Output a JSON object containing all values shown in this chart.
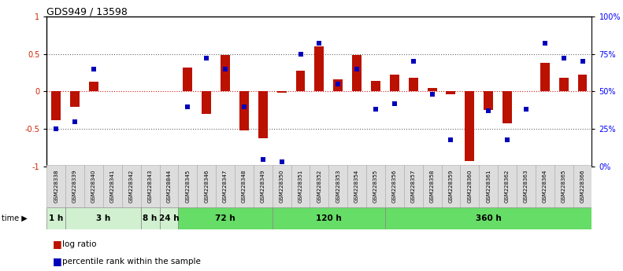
{
  "title": "GDS949 / 13598",
  "samples": [
    "GSM228338",
    "GSM228339",
    "GSM228340",
    "GSM228341",
    "GSM228342",
    "GSM228343",
    "GSM228844",
    "GSM228345",
    "GSM228346",
    "GSM228347",
    "GSM228348",
    "GSM228349",
    "GSM228350",
    "GSM228351",
    "GSM228352",
    "GSM228353",
    "GSM228354",
    "GSM228355",
    "GSM228356",
    "GSM228357",
    "GSM228358",
    "GSM228359",
    "GSM228360",
    "GSM228361",
    "GSM228362",
    "GSM228363",
    "GSM228364",
    "GSM228365",
    "GSM228366"
  ],
  "log_ratio": [
    -0.38,
    -0.2,
    0.13,
    0.0,
    0.0,
    0.0,
    0.0,
    0.32,
    -0.3,
    0.48,
    -0.52,
    -0.62,
    -0.02,
    0.28,
    0.6,
    0.16,
    0.48,
    0.14,
    0.22,
    0.18,
    0.05,
    -0.04,
    -0.93,
    -0.25,
    -0.42,
    0.0,
    0.38,
    0.18,
    0.22
  ],
  "percentile": [
    25,
    30,
    65,
    0,
    0,
    0,
    0,
    40,
    72,
    65,
    40,
    5,
    3,
    75,
    82,
    55,
    65,
    38,
    42,
    70,
    48,
    18,
    0,
    37,
    18,
    38,
    82,
    72,
    70
  ],
  "time_groups": [
    {
      "label": "1 h",
      "start": 0,
      "end": 1,
      "color": "#d0f0d0"
    },
    {
      "label": "3 h",
      "start": 1,
      "end": 5,
      "color": "#d0f0d0"
    },
    {
      "label": "8 h",
      "start": 5,
      "end": 6,
      "color": "#d0f0d0"
    },
    {
      "label": "24 h",
      "start": 6,
      "end": 7,
      "color": "#d0f0d0"
    },
    {
      "label": "72 h",
      "start": 7,
      "end": 12,
      "color": "#66dd66"
    },
    {
      "label": "120 h",
      "start": 12,
      "end": 18,
      "color": "#66dd66"
    },
    {
      "label": "360 h",
      "start": 18,
      "end": 29,
      "color": "#66dd66"
    }
  ],
  "bar_color": "#bb1100",
  "dot_color": "#0000bb",
  "hline_color": "#cc0000",
  "dotline_color": "#666666",
  "ylim": [
    -1,
    1
  ],
  "y2lim": [
    0,
    100
  ],
  "left_yticks": [
    -1,
    -0.5,
    0,
    0.5,
    1
  ],
  "left_yticklabels": [
    "-1",
    "-0.5",
    "0",
    "0.5",
    "1"
  ],
  "right_yticks": [
    0,
    25,
    50,
    75,
    100
  ],
  "right_yticklabels": [
    "0%",
    "25%",
    "50%",
    "75%",
    "100%"
  ]
}
